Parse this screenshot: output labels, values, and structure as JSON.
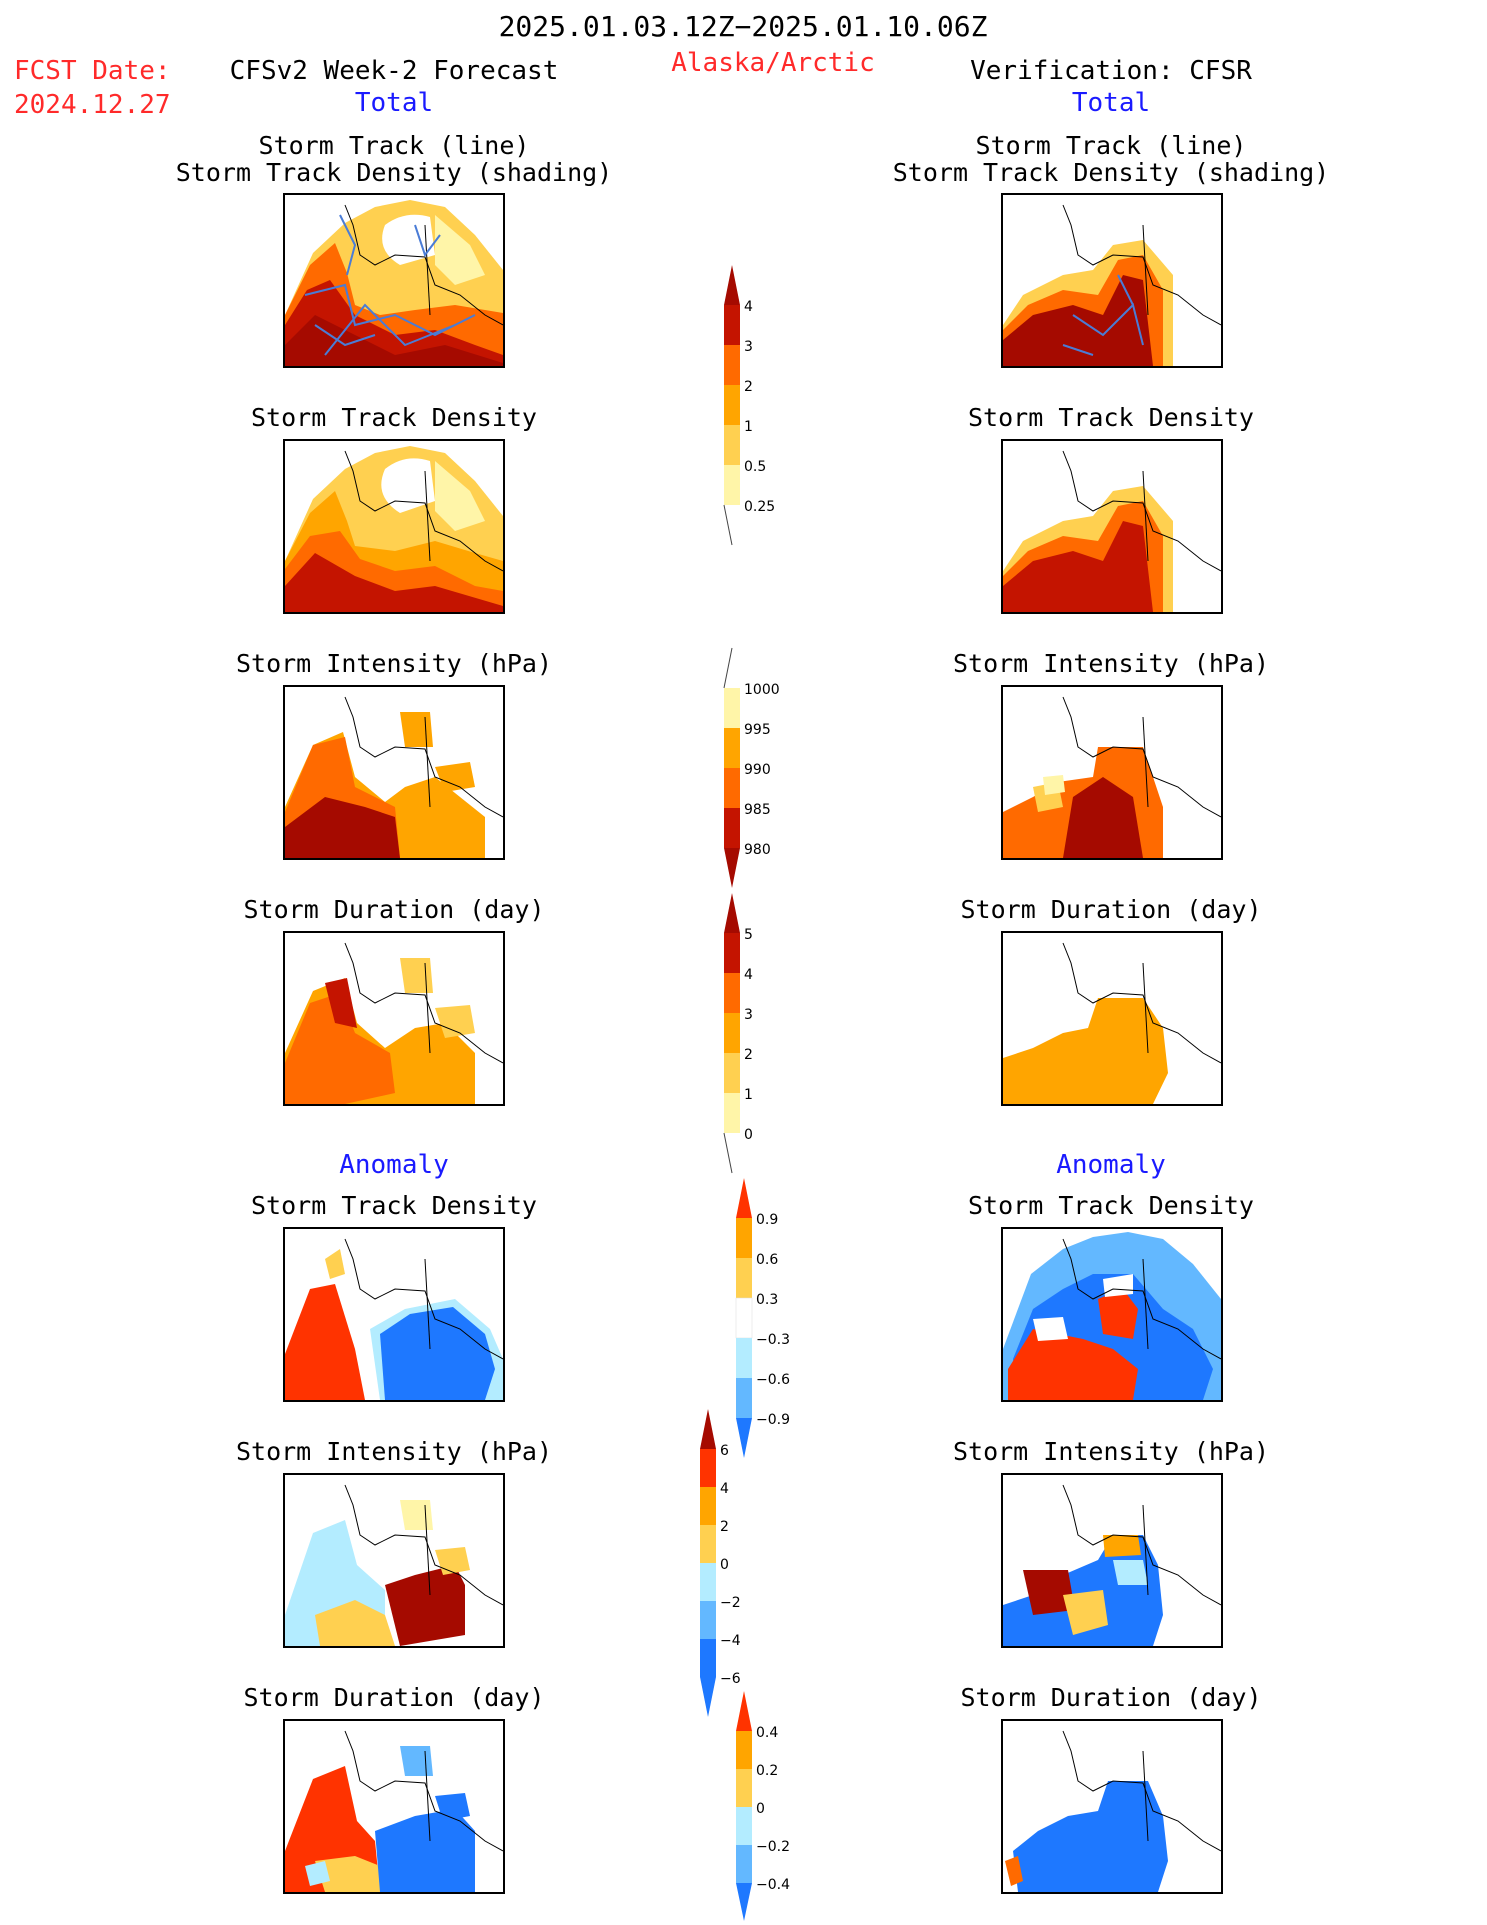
{
  "header": {
    "period": "2025.01.03.12Z−2025.01.10.06Z",
    "region": "Alaska/Arctic",
    "fcst_label": "FCST Date:",
    "fcst_date": "2024.12.27",
    "left_title": "CFSv2 Week-2 Forecast",
    "right_title": "Verification: CFSR",
    "total_label": "Total",
    "anomaly_label": "Anomaly"
  },
  "panels": {
    "track_line_1": "Storm Track (line)",
    "track_line_2": "Storm Track Density (shading)",
    "density": "Storm Track Density",
    "intensity": "Storm Intensity (hPa)",
    "duration": "Storm Duration (day)"
  },
  "colorbars": {
    "density_total": [
      "4",
      "3",
      "2",
      "1",
      "0.5",
      "0.25"
    ],
    "intensity_total": [
      "1000",
      "995",
      "990",
      "985",
      "980"
    ],
    "duration_total": [
      "5",
      "4",
      "3",
      "2",
      "1",
      "0"
    ],
    "density_anom": [
      "0.9",
      "0.6",
      "0.3",
      "−0.3",
      "−0.6",
      "−0.9"
    ],
    "intensity_anom": [
      "6",
      "4",
      "2",
      "0",
      "−2",
      "−4",
      "−6"
    ],
    "duration_anom": [
      "0.4",
      "0.2",
      "0",
      "−0.2",
      "−0.4"
    ]
  },
  "colors": {
    "light_yellow": "#fff5a8",
    "yellow": "#ffd050",
    "light_orange": "#ffa500",
    "orange": "#ff6a00",
    "red_orange": "#ff3300",
    "dark_red": "#c41400",
    "maroon": "#a50a00",
    "light_blue": "#b3ecff",
    "sky_blue": "#63b8ff",
    "blue": "#1e78ff",
    "dark_blue": "#1050d8",
    "track_line": "#4a7cd6"
  }
}
